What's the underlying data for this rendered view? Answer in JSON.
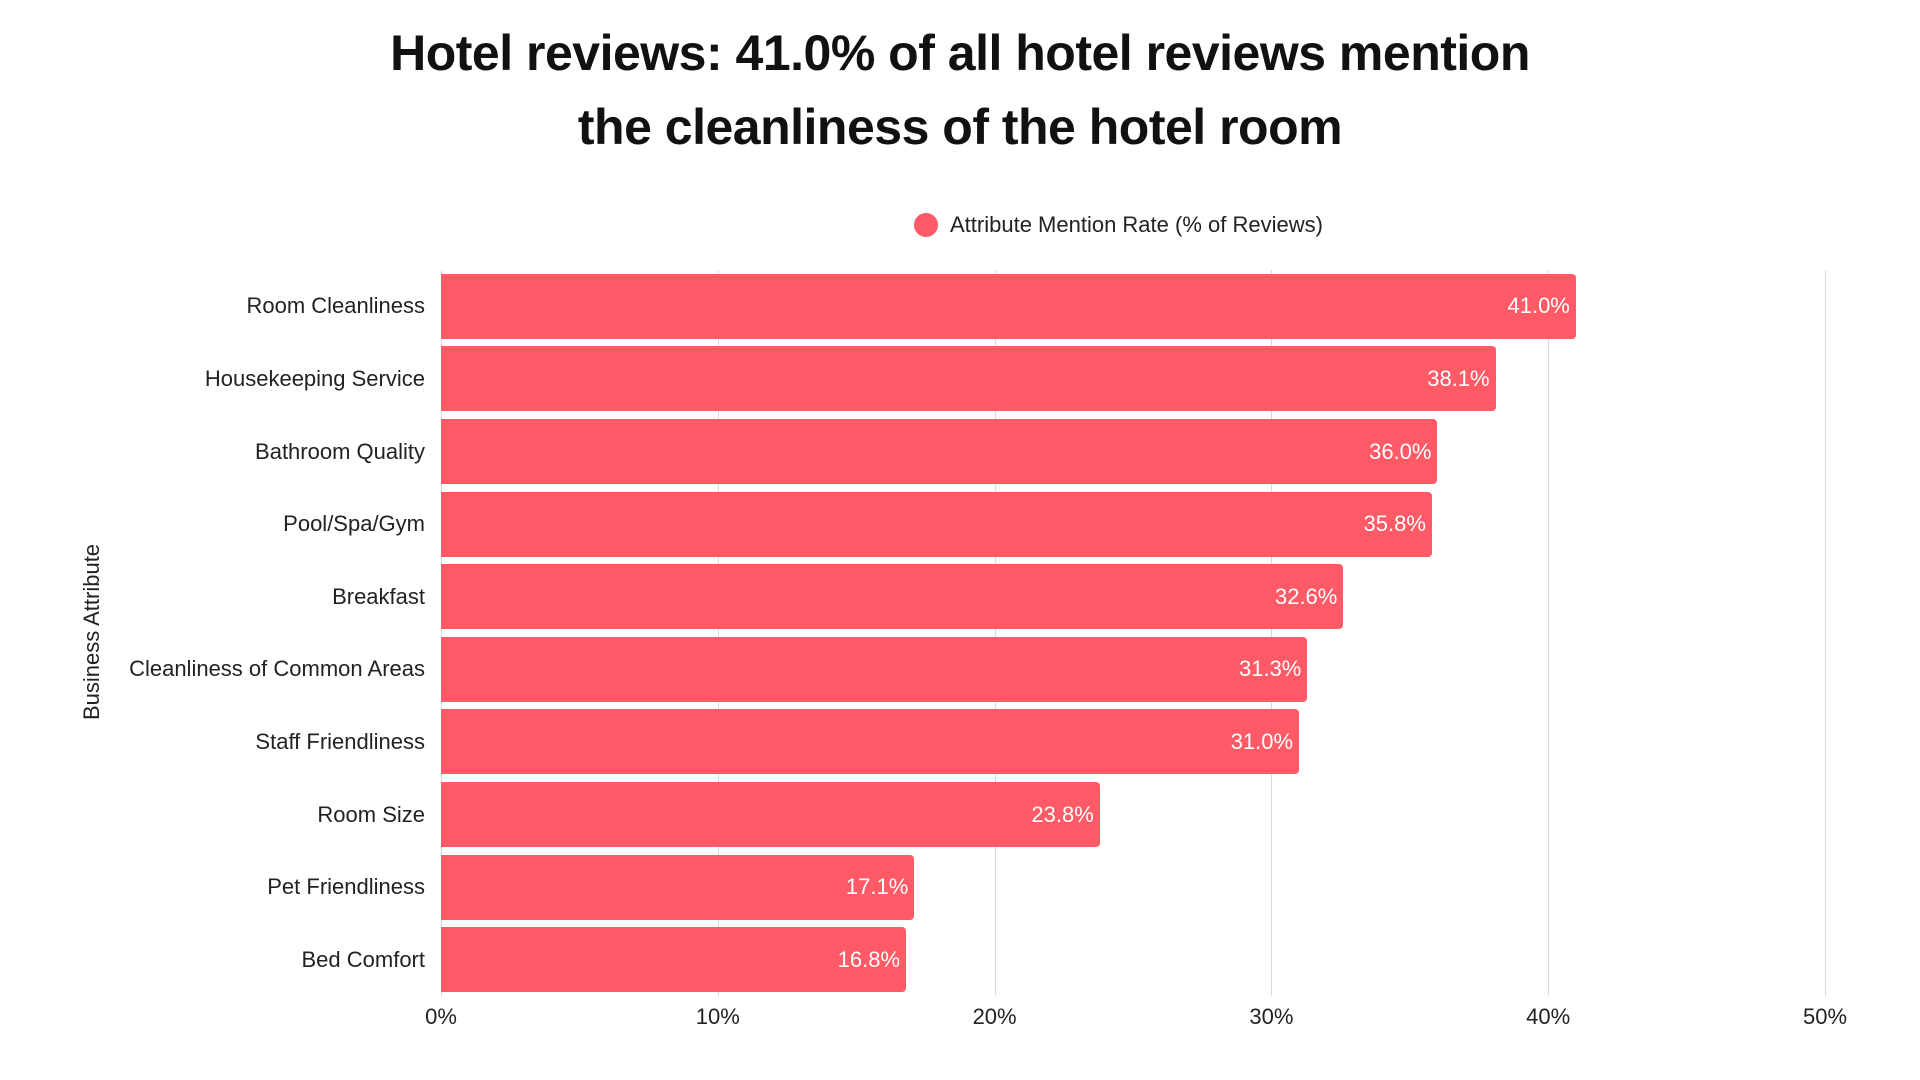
{
  "title_line1": "Hotel reviews: 41.0% of all hotel reviews mention",
  "title_line2": "the cleanliness of the hotel room",
  "legend": {
    "label": "Attribute Mention Rate (% of Reviews)",
    "color": "#ff5a66"
  },
  "y_axis_label": "Business Attribute",
  "x_ticks": [
    "0%",
    "10%",
    "20%",
    "30%",
    "40%",
    "50%"
  ],
  "chart_data": {
    "type": "bar",
    "orientation": "horizontal",
    "title": "Hotel reviews: 41.0% of all hotel reviews mention the cleanliness of the hotel room",
    "xlabel": "",
    "ylabel": "Business Attribute",
    "xlim": [
      0,
      50
    ],
    "grid": true,
    "legend_position": "top",
    "categories": [
      "Room Cleanliness",
      "Housekeeping Service",
      "Bathroom Quality",
      "Pool/Spa/Gym",
      "Breakfast",
      "Cleanliness of Common Areas",
      "Staff Friendliness",
      "Room Size",
      "Pet Friendliness",
      "Bed Comfort"
    ],
    "series": [
      {
        "name": "Attribute Mention Rate (% of Reviews)",
        "color": "#ff5a66",
        "values": [
          41.0,
          38.1,
          36.0,
          35.8,
          32.6,
          31.3,
          31.0,
          23.8,
          17.1,
          16.8
        ]
      }
    ],
    "labels": [
      "41.0%",
      "38.1%",
      "36.0%",
      "35.8%",
      "32.6%",
      "31.3%",
      "31.0%",
      "23.8%",
      "17.1%",
      "16.8%"
    ]
  }
}
